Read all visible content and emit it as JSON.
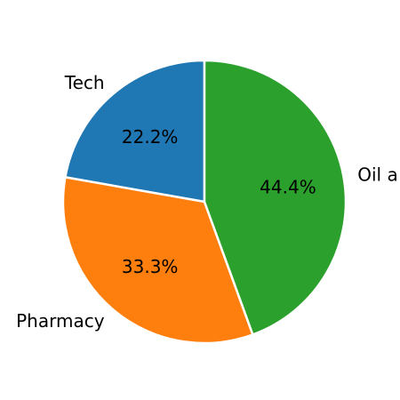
{
  "chart_data": {
    "type": "pie",
    "title": "",
    "categories": [
      "Tech",
      "Pharmacy",
      "Oil and Gas"
    ],
    "values": [
      22.2,
      33.3,
      44.4
    ],
    "labels": [
      "Tech",
      "Pharmacy",
      "Oil a"
    ],
    "percent_labels": [
      "22.2%",
      "33.3%",
      "44.4%"
    ],
    "colors": [
      "#1f77b4",
      "#ff7f0e",
      "#2ca02c"
    ],
    "start_angle_deg": 90,
    "direction": "counterclockwise",
    "legend": "none"
  }
}
